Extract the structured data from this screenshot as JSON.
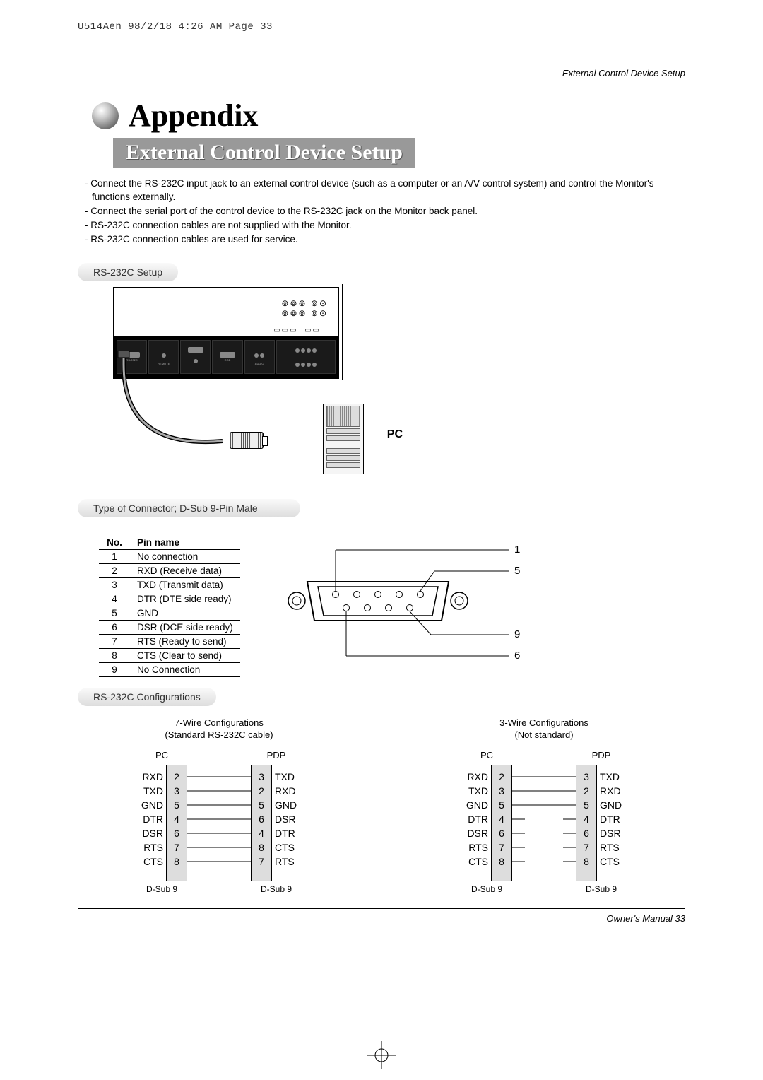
{
  "stamp": "U514Aen  98/2/18 4:26 AM  Page 33",
  "header_right": "External Control Device Setup",
  "title": "Appendix",
  "subtitle": "External Control Device Setup",
  "intro_bullets": [
    "Connect the RS-232C input jack to an external control device (such as a computer or an A/V control system) and control the Monitor's functions externally.",
    "Connect the serial port of the control device to the RS-232C jack on the Monitor back panel.",
    "RS-232C connection cables are not supplied with the Monitor.",
    "RS-232C connection cables are used for service."
  ],
  "section_setup": "RS-232C Setup",
  "pc_label": "PC",
  "section_connector": "Type of Connector; D-Sub 9-Pin Male",
  "pin_table": {
    "head_no": "No.",
    "head_name": "Pin name",
    "rows": [
      {
        "no": "1",
        "name": "No connection"
      },
      {
        "no": "2",
        "name": "RXD (Receive data)"
      },
      {
        "no": "3",
        "name": "TXD (Transmit data)"
      },
      {
        "no": "4",
        "name": "DTR (DTE side ready)"
      },
      {
        "no": "5",
        "name": "GND"
      },
      {
        "no": "6",
        "name": "DSR (DCE side ready)"
      },
      {
        "no": "7",
        "name": "RTS (Ready to send)"
      },
      {
        "no": "8",
        "name": "CTS (Clear to send)"
      },
      {
        "no": "9",
        "name": "No Connection"
      }
    ]
  },
  "connector_pins": {
    "p1": "1",
    "p5": "5",
    "p6": "6",
    "p9": "9"
  },
  "section_config": "RS-232C Configurations",
  "config7": {
    "title_l1": "7-Wire Configurations",
    "title_l2": "(Standard RS-232C cable)",
    "pc": "PC",
    "pdp": "PDP",
    "dsub": "D-Sub 9",
    "left_labels": [
      "RXD",
      "TXD",
      "GND",
      "DTR",
      "DSR",
      "RTS",
      "CTS"
    ],
    "left_pins": [
      "2",
      "3",
      "5",
      "4",
      "6",
      "7",
      "8"
    ],
    "right_pins": [
      "3",
      "2",
      "5",
      "6",
      "4",
      "8",
      "7"
    ],
    "right_labels": [
      "TXD",
      "RXD",
      "GND",
      "DSR",
      "DTR",
      "CTS",
      "RTS"
    ],
    "connections": [
      [
        0,
        0
      ],
      [
        1,
        1
      ],
      [
        2,
        2
      ],
      [
        3,
        3
      ],
      [
        4,
        4
      ],
      [
        5,
        5
      ],
      [
        6,
        6
      ]
    ]
  },
  "config3": {
    "title_l1": "3-Wire Configurations",
    "title_l2": "(Not standard)",
    "pc": "PC",
    "pdp": "PDP",
    "dsub": "D-Sub 9",
    "left_labels": [
      "RXD",
      "TXD",
      "GND",
      "DTR",
      "DSR",
      "RTS",
      "CTS"
    ],
    "left_pins": [
      "2",
      "3",
      "5",
      "4",
      "6",
      "7",
      "8"
    ],
    "right_pins": [
      "3",
      "2",
      "5",
      "4",
      "6",
      "7",
      "8"
    ],
    "right_labels": [
      "TXD",
      "RXD",
      "GND",
      "DTR",
      "DSR",
      "RTS",
      "CTS"
    ],
    "connections": [
      [
        0,
        0
      ],
      [
        1,
        1
      ],
      [
        2,
        2
      ]
    ],
    "left_stubs": [
      3,
      4,
      5,
      6
    ],
    "right_stubs": [
      3,
      4,
      5,
      6
    ]
  },
  "footer": "Owner's Manual   33",
  "colors": {
    "pill_bg": "#dddddd",
    "bar_bg": "#999999",
    "box_bg": "#dddddd"
  }
}
